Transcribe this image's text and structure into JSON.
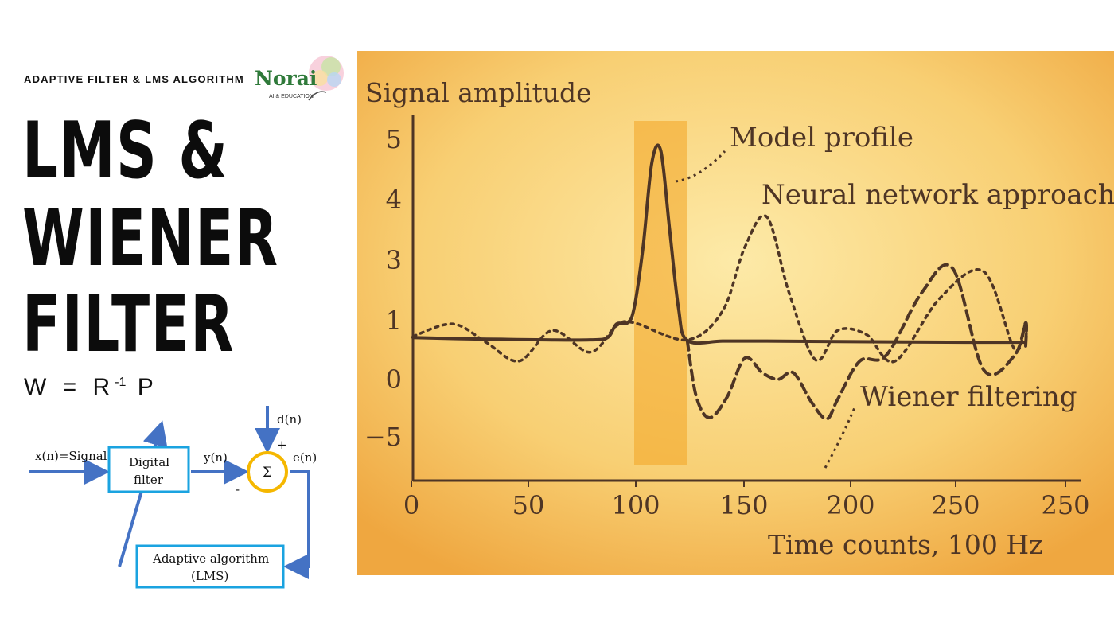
{
  "header": {
    "eyebrow": "ADAPTIVE FILTER & LMS ALGORITHM",
    "logo_name": "Norai",
    "logo_tagline": "AI & EDUCATION"
  },
  "title": {
    "line1": "LMS &",
    "line2": "WIENER",
    "line3": "FILTER"
  },
  "formula": {
    "w": "W",
    "eq": "=",
    "r": "R",
    "exp": "-1",
    "p": "P"
  },
  "diagram": {
    "input_label": "x(n)=Signal",
    "filter_line1": "Digital",
    "filter_line2": "filter",
    "output_label": "y(n)",
    "desired_label": "d(n)",
    "plus_sign": "+",
    "minus_sign": "-",
    "sum_symbol": "Σ",
    "error_label": "e(n)",
    "adaptive_line1": "Adaptive algorithm",
    "adaptive_line2": "(LMS)",
    "colors": {
      "arrow": "#4472c4",
      "box": "#1aa3e0",
      "sum": "#f5b700"
    }
  },
  "chart_data": {
    "type": "line",
    "ylabel": "Signal amplitude",
    "xlabel": "Time counts, 100 Hz",
    "x_ticks": [
      "0",
      "50",
      "100",
      "150",
      "200",
      "250",
      "250"
    ],
    "y_ticks": [
      "5",
      "4",
      "3",
      "1",
      "0",
      "−5"
    ],
    "highlight_band": {
      "from": 100,
      "to": 124,
      "color": "#f3a423"
    },
    "series": [
      {
        "name": "Model profile",
        "style": "solid",
        "x": [
          0,
          20,
          40,
          60,
          80,
          88,
          92,
          97,
          100,
          104,
          108,
          112,
          116,
          120,
          124,
          140,
          160,
          200,
          250,
          300
        ],
        "y": [
          0.7,
          0.68,
          0.67,
          0.66,
          0.66,
          0.7,
          0.93,
          0.95,
          1.4,
          3.2,
          4.6,
          4.8,
          3.5,
          1.4,
          0.65,
          0.64,
          0.64,
          0.63,
          0.62,
          0.62
        ]
      },
      {
        "name": "Neural network approach",
        "style": "dotted",
        "x": [
          0,
          18,
          33,
          48,
          63,
          80,
          92,
          100,
          124,
          140,
          150,
          160,
          170,
          182,
          192,
          205,
          218,
          238,
          258,
          272,
          290,
          300
        ],
        "y": [
          0.72,
          0.93,
          0.62,
          0.3,
          0.82,
          0.45,
          0.9,
          0.95,
          0.66,
          1.3,
          3.2,
          3.7,
          1.9,
          0.32,
          0.82,
          0.75,
          0.3,
          1.7,
          2.6,
          0.5,
          0.95,
          0.55
        ]
      },
      {
        "name": "Wiener filtering",
        "style": "dashed",
        "x": [
          124,
          128,
          134,
          142,
          150,
          158,
          165,
          172,
          180,
          187,
          192,
          202,
          214,
          230,
          244,
          258,
          272,
          290,
          300
        ],
        "y": [
          0.65,
          -1.5,
          -3.4,
          -1.6,
          0.35,
          0.1,
          -0.05,
          0.1,
          -2.0,
          -3.5,
          -1.8,
          0.3,
          0.4,
          1.9,
          2.7,
          0.15,
          0.4,
          0.95,
          0.55
        ]
      }
    ],
    "colors": {
      "line": "#4e3525",
      "bg_light": "#fde9a6",
      "bg_dark": "#f2b04a"
    }
  }
}
